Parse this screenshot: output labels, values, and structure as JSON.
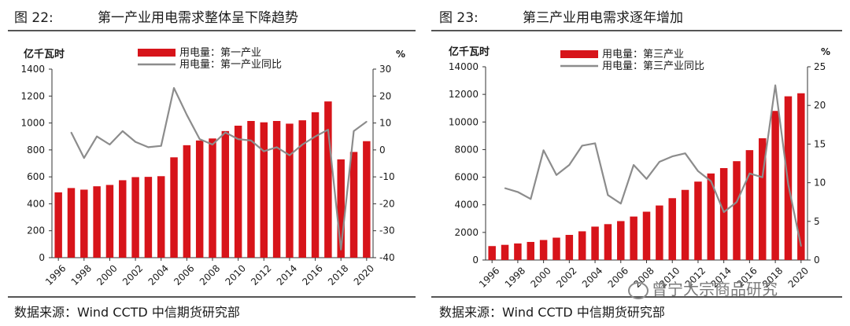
{
  "charts": [
    {
      "fig_num": "图 22:",
      "title": "第一产业用电需求整体呈下降趋势",
      "source": "数据来源：Wind CCTD 中信期货研究部",
      "unit_left": "亿千瓦时",
      "unit_right": "%",
      "legend_bar": "用电量：第一产业",
      "legend_line": "用电量：第一产业同比"
    },
    {
      "fig_num": "图 23:",
      "title": "第三产业用电需求逐年增加",
      "source": "数据来源：Wind CCTD 中信期货研究部",
      "unit_left": "亿千瓦时",
      "unit_right": "%",
      "legend_bar": "用电量：第三产业",
      "legend_line": "用电量：第三产业同比"
    }
  ],
  "watermark": "曾宁大宗商品研究",
  "colors": {
    "bar": "#d7141a",
    "line": "#8c8c8c",
    "axis": "#333333"
  },
  "chart_data": [
    {
      "type": "bar+line",
      "title": "第一产业用电需求整体呈下降趋势",
      "ylabel": "亿千瓦时",
      "y2label": "%",
      "ylim": [
        0,
        1400
      ],
      "y2lim": [
        -40,
        30
      ],
      "yticks": [
        0,
        200,
        400,
        600,
        800,
        1000,
        1200,
        1400
      ],
      "y2ticks": [
        -40,
        -30,
        -20,
        -10,
        0,
        10,
        20,
        30
      ],
      "years": [
        1996,
        1997,
        1998,
        1999,
        2000,
        2001,
        2002,
        2003,
        2004,
        2005,
        2006,
        2007,
        2008,
        2009,
        2010,
        2011,
        2012,
        2013,
        2014,
        2015,
        2016,
        2017,
        2018,
        2019,
        2020
      ],
      "xtick_labels": [
        "1996",
        "1998",
        "2000",
        "2002",
        "2004",
        "2006",
        "2008",
        "2010",
        "2012",
        "2014",
        "2016",
        "2018",
        "2020"
      ],
      "series": [
        {
          "name": "用电量：第一产业",
          "type": "bar",
          "axis": "left",
          "values": [
            485,
            517,
            505,
            530,
            540,
            575,
            598,
            600,
            605,
            745,
            835,
            870,
            885,
            940,
            980,
            1015,
            1005,
            1015,
            995,
            1020,
            1080,
            1160,
            730,
            785,
            865
          ]
        },
        {
          "name": "用电量：第一产业同比",
          "type": "line",
          "axis": "right",
          "start_year": 1997,
          "values": [
            6.5,
            -3,
            5,
            2,
            7,
            3,
            1,
            1.5,
            23,
            13,
            4,
            2,
            6.5,
            4,
            3.5,
            -0.5,
            1,
            -2,
            2,
            5,
            7.5,
            -37,
            7,
            10.5
          ]
        }
      ]
    },
    {
      "type": "bar+line",
      "title": "第三产业用电需求逐年增加",
      "ylabel": "亿千瓦时",
      "y2label": "%",
      "ylim": [
        0,
        14000
      ],
      "y2lim": [
        0,
        25
      ],
      "yticks": [
        0,
        2000,
        4000,
        6000,
        8000,
        10000,
        12000,
        14000
      ],
      "y2ticks": [
        0,
        5,
        10,
        15,
        20,
        25
      ],
      "years": [
        1996,
        1997,
        1998,
        1999,
        2000,
        2001,
        2002,
        2003,
        2004,
        2005,
        2006,
        2007,
        2008,
        2009,
        2010,
        2011,
        2012,
        2013,
        2014,
        2015,
        2016,
        2017,
        2018,
        2019,
        2020
      ],
      "xtick_labels": [
        "1996",
        "1998",
        "2000",
        "2002",
        "2004",
        "2006",
        "2008",
        "2010",
        "2012",
        "2014",
        "2016",
        "2018",
        "2020"
      ],
      "series": [
        {
          "name": "用电量：第三产业",
          "type": "bar",
          "axis": "left",
          "values": [
            1010,
            1100,
            1200,
            1310,
            1450,
            1620,
            1820,
            2080,
            2420,
            2600,
            2820,
            3150,
            3500,
            3950,
            4480,
            5080,
            5680,
            6270,
            6660,
            7160,
            7960,
            8820,
            10800,
            11860,
            12080
          ]
        },
        {
          "name": "用电量：第三产业同比",
          "type": "line",
          "axis": "right",
          "start_year": 1997,
          "values": [
            9.3,
            8.8,
            7.9,
            14.2,
            11,
            12.3,
            14.8,
            15.1,
            8.4,
            7.3,
            12.3,
            10.5,
            12.7,
            13.4,
            13.8,
            11.5,
            10.2,
            6.2,
            7.5,
            11.2,
            10.7,
            22.6,
            9.8,
            1.8
          ]
        }
      ]
    }
  ]
}
